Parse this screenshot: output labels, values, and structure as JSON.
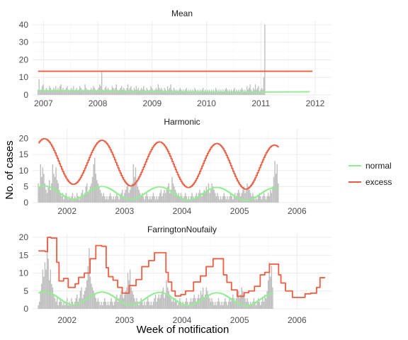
{
  "chart_data": {
    "type": "bar",
    "ylabel": "No. of cases",
    "xlabel": "Week of notification",
    "legend": {
      "position": "right",
      "entries": [
        {
          "name": "normal",
          "color": "#90EE90"
        },
        {
          "name": "excess",
          "color": "#EE5C42"
        }
      ]
    },
    "grid": true,
    "bar_color": "#BEBEBE",
    "panels": [
      {
        "title": "Mean",
        "x_range": [
          2006.8,
          2012.3
        ],
        "x_ticks": [
          2007,
          2008,
          2009,
          2010,
          2011,
          2012
        ],
        "ylim": [
          0,
          42
        ],
        "y_ticks": [
          0,
          10,
          20,
          30,
          40
        ],
        "bars": {
          "start": 2006.9,
          "step": 0.01923,
          "values": [
            3,
            9,
            2,
            3,
            5,
            6,
            2,
            3,
            4,
            3,
            2,
            5,
            4,
            3,
            2,
            4,
            3,
            5,
            2,
            4,
            3,
            5,
            6,
            3,
            4,
            2,
            3,
            4,
            5,
            3,
            2,
            3,
            4,
            3,
            5,
            2,
            3,
            4,
            2,
            3,
            5,
            4,
            3,
            2,
            3,
            6,
            4,
            3,
            3,
            2,
            3,
            4,
            3,
            5,
            4,
            3,
            2,
            3,
            4,
            6,
            5,
            13,
            3,
            2,
            4,
            5,
            3,
            4,
            3,
            2,
            3,
            5,
            4,
            3,
            4,
            6,
            3,
            2,
            3,
            4,
            5,
            3,
            4,
            3,
            2,
            4,
            6,
            3,
            4,
            5,
            3,
            2,
            4,
            3,
            5,
            3,
            4,
            2,
            3,
            4,
            3,
            5,
            3,
            2,
            4,
            3,
            2,
            3,
            5,
            4,
            3,
            2,
            3,
            4,
            3,
            6,
            4,
            3,
            4,
            3,
            2,
            4,
            3,
            2,
            5,
            3,
            4,
            6,
            3,
            2,
            4,
            3,
            2,
            3,
            2,
            3,
            4,
            3,
            2,
            3,
            2,
            3,
            4,
            2,
            3,
            2,
            3,
            2,
            3,
            2,
            4,
            3,
            2,
            3,
            2,
            3,
            2,
            3,
            4,
            2,
            3,
            2,
            3,
            2,
            3,
            2,
            3,
            2,
            3,
            2,
            4,
            3,
            2,
            3,
            2,
            3,
            2,
            3,
            2,
            3,
            4,
            3,
            2,
            3,
            2,
            3,
            2,
            3,
            4,
            2,
            3,
            2,
            3,
            2,
            3,
            4,
            3,
            2,
            3,
            2,
            5,
            3,
            4,
            6,
            3,
            2,
            4,
            3,
            6,
            3,
            4,
            5,
            2,
            3,
            4,
            3,
            10,
            40
          ]
        },
        "normal": [
          [
            2006.9,
            2.5
          ],
          [
            2008.0,
            2.3
          ],
          [
            2009.0,
            2.0
          ],
          [
            2010.0,
            1.7
          ],
          [
            2011.0,
            1.6
          ],
          [
            2011.9,
            1.8
          ]
        ],
        "excess": [
          [
            2006.9,
            13.5
          ],
          [
            2011.95,
            13.5
          ]
        ]
      },
      {
        "title": "Harmonic",
        "x_range": [
          2001.4,
          2006.6
        ],
        "x_ticks": [
          2002,
          2003,
          2004,
          2005,
          2006
        ],
        "ylim": [
          0,
          23
        ],
        "y_ticks": [
          0,
          5,
          10,
          15,
          20
        ],
        "bars": {
          "start": 2001.5,
          "step": 0.01923,
          "values": [
            6,
            5,
            12,
            8,
            11,
            9,
            6,
            4,
            3,
            5,
            7,
            4,
            6,
            12,
            9,
            8,
            11,
            7,
            6,
            4,
            3,
            2,
            3,
            1,
            2,
            3,
            2,
            1,
            2,
            1,
            2,
            3,
            1,
            2,
            1,
            3,
            2,
            1,
            2,
            3,
            4,
            2,
            3,
            5,
            6,
            3,
            4,
            5,
            6,
            8,
            12,
            14,
            9,
            7,
            6,
            5,
            4,
            3,
            2,
            3,
            2,
            1,
            2,
            1,
            2,
            3,
            2,
            1,
            2,
            1,
            2,
            3,
            2,
            1,
            2,
            3,
            4,
            2,
            3,
            4,
            5,
            6,
            3,
            4,
            5,
            6,
            12,
            8,
            11,
            6,
            5,
            4,
            3,
            2,
            3,
            2,
            1,
            2,
            3,
            2,
            1,
            2,
            1,
            2,
            3,
            2,
            1,
            2,
            1,
            2,
            3,
            4,
            2,
            3,
            4,
            3,
            4,
            5,
            6,
            3,
            4,
            8,
            6,
            5,
            4,
            3,
            2,
            3,
            2,
            3,
            2,
            1,
            2,
            3,
            2,
            1,
            2,
            1,
            2,
            3,
            2,
            1,
            2,
            3,
            2,
            3,
            4,
            3,
            2,
            3,
            4,
            3,
            5,
            4,
            6,
            3,
            4,
            6,
            5,
            4,
            3,
            2,
            3,
            2,
            1,
            2,
            1,
            2,
            3,
            2,
            1,
            2,
            1,
            2,
            3,
            2,
            1,
            2,
            3,
            2,
            3,
            4,
            3,
            2,
            3,
            4,
            5,
            3,
            4,
            6,
            5,
            4,
            3,
            2,
            3,
            2,
            1,
            2,
            1,
            2,
            3,
            2,
            1,
            2,
            3,
            2,
            1,
            2,
            3,
            2,
            4,
            3,
            5,
            8,
            13,
            9,
            12,
            6
          ]
        },
        "excess_formula": {
          "base": 13.0,
          "amp": 7.0,
          "period": 1.0,
          "peak": 2001.6,
          "trend": -0.5
        },
        "normal_formula": {
          "base": 3.2,
          "amp": 2.0,
          "period": 1.0,
          "peak": 2001.6,
          "trend": -0.15
        }
      },
      {
        "title": "FarringtonNoufaily",
        "x_range": [
          2001.4,
          2006.6
        ],
        "x_ticks": [
          2002,
          2003,
          2004,
          2005,
          2006
        ],
        "ylim": [
          0,
          21
        ],
        "y_ticks": [
          0,
          5,
          10,
          15,
          20
        ],
        "bars": {
          "start": 2001.5,
          "step": 0.01923,
          "values": [
            1,
            2,
            5,
            7,
            11,
            9,
            13,
            11,
            20,
            14,
            8,
            11,
            7,
            6,
            4,
            3,
            2,
            3,
            1,
            2,
            3,
            2,
            1,
            2,
            1,
            2,
            3,
            1,
            2,
            1,
            3,
            2,
            1,
            2,
            3,
            4,
            2,
            3,
            5,
            6,
            3,
            4,
            5,
            6,
            8,
            12,
            17,
            9,
            7,
            6,
            5,
            4,
            3,
            2,
            3,
            2,
            1,
            2,
            1,
            2,
            3,
            2,
            1,
            2,
            1,
            2,
            3,
            2,
            1,
            2,
            3,
            4,
            2,
            3,
            4,
            5,
            6,
            3,
            4,
            5,
            6,
            10,
            8,
            11,
            6,
            5,
            4,
            3,
            2,
            3,
            2,
            1,
            2,
            3,
            2,
            1,
            2,
            1,
            2,
            3,
            2,
            1,
            2,
            1,
            2,
            3,
            4,
            2,
            3,
            4,
            3,
            4,
            5,
            6,
            3,
            4,
            8,
            6,
            5,
            4,
            3,
            2,
            3,
            2,
            3,
            2,
            1,
            2,
            3,
            2,
            1,
            2,
            1,
            2,
            3,
            2,
            1,
            2,
            3,
            2,
            3,
            4,
            3,
            2,
            3,
            4,
            3,
            5,
            4,
            6,
            3,
            4,
            6,
            5,
            4,
            3,
            2,
            3,
            2,
            1,
            2,
            1,
            2,
            3,
            2,
            1,
            2,
            1,
            2,
            3,
            2,
            1,
            2,
            3,
            2,
            3,
            4,
            3,
            2,
            3,
            4,
            5,
            3,
            4,
            6,
            5,
            4,
            3,
            2,
            3,
            2,
            1,
            2,
            1,
            2,
            3,
            2,
            1,
            2,
            3,
            2,
            1,
            2,
            3,
            2,
            4,
            3,
            5,
            8,
            13,
            9,
            12,
            6
          ]
        },
        "excess_steps": [
          [
            2001.5,
            16.2
          ],
          [
            2001.62,
            16.0
          ],
          [
            2001.66,
            20.0
          ],
          [
            2001.72,
            19.8
          ],
          [
            2001.82,
            13.0
          ],
          [
            2001.86,
            7.8
          ],
          [
            2001.94,
            8.5
          ],
          [
            2002.02,
            6.0
          ],
          [
            2002.1,
            6.0
          ],
          [
            2002.14,
            7.0
          ],
          [
            2002.2,
            8.8
          ],
          [
            2002.3,
            10.0
          ],
          [
            2002.4,
            14.0
          ],
          [
            2002.5,
            17.7
          ],
          [
            2002.6,
            17.5
          ],
          [
            2002.68,
            11.5
          ],
          [
            2002.72,
            9.0
          ],
          [
            2002.8,
            8.0
          ],
          [
            2002.88,
            6.0
          ],
          [
            2002.96,
            4.4
          ],
          [
            2003.08,
            6.5
          ],
          [
            2003.2,
            8.2
          ],
          [
            2003.3,
            11.8
          ],
          [
            2003.42,
            13.5
          ],
          [
            2003.52,
            15.7
          ],
          [
            2003.68,
            15.7
          ],
          [
            2003.72,
            10.2
          ],
          [
            2003.76,
            7.5
          ],
          [
            2003.82,
            5.0
          ],
          [
            2003.88,
            3.6
          ],
          [
            2003.98,
            4.0
          ],
          [
            2004.06,
            5.0
          ],
          [
            2004.2,
            7.5
          ],
          [
            2004.32,
            9.2
          ],
          [
            2004.42,
            11.8
          ],
          [
            2004.54,
            14.0
          ],
          [
            2004.66,
            14.0
          ],
          [
            2004.72,
            9.5
          ],
          [
            2004.78,
            7.4
          ],
          [
            2004.86,
            5.3
          ],
          [
            2004.96,
            3.5
          ],
          [
            2005.08,
            4.5
          ],
          [
            2005.16,
            5.0
          ],
          [
            2005.26,
            6.3
          ],
          [
            2005.36,
            9.5
          ],
          [
            2005.44,
            10.2
          ],
          [
            2005.52,
            12.5
          ],
          [
            2005.64,
            12.5
          ],
          [
            2005.68,
            9.5
          ],
          [
            2005.72,
            7.2
          ],
          [
            2005.8,
            5.0
          ],
          [
            2005.92,
            3.2
          ],
          [
            2006.04,
            3.2
          ],
          [
            2006.14,
            4.2
          ],
          [
            2006.24,
            4.4
          ],
          [
            2006.34,
            6.0
          ],
          [
            2006.4,
            8.7
          ],
          [
            2006.48,
            8.9
          ]
        ],
        "normal_formula": {
          "base": 3.0,
          "amp": 1.8,
          "period": 1.0,
          "peak": 2001.6,
          "trend": -0.1
        }
      }
    ]
  }
}
